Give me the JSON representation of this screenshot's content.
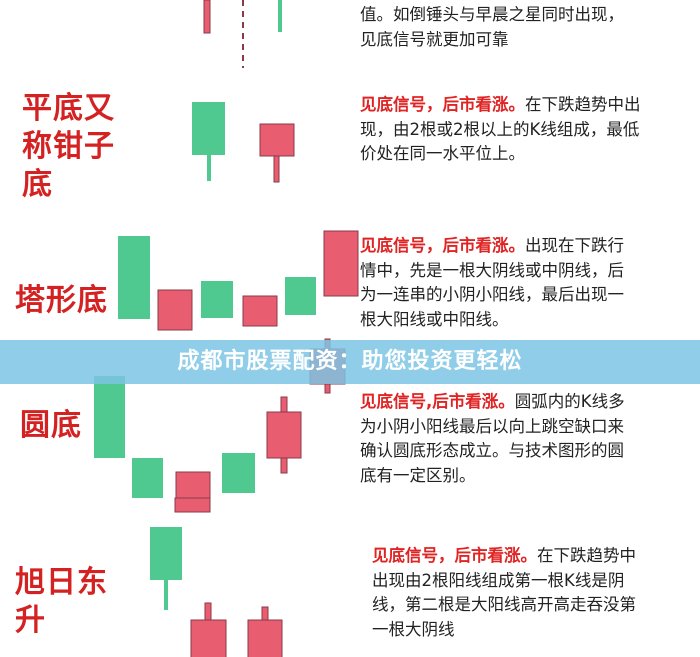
{
  "colors": {
    "bullish_red": "#e85d6f",
    "bearish_green": "#4fc98f",
    "label_red": "#d42222",
    "banner": "#7dc4e4"
  },
  "sections": [
    {
      "label": "",
      "desc_hl": "",
      "desc": "值。如倒锤头与早晨之星同时出现，见底信号就更加可靠"
    },
    {
      "label": "平底又称钳子底",
      "desc_hl": "见底信号，后市看涨。",
      "desc": "在下跌趋势中出现，由2根或2根以上的K线组成，最低价处在同一水平位上。"
    },
    {
      "label": "塔形底",
      "desc_hl": "见底信号，后市看涨。",
      "desc": "出现在下跌行情中，先是一根大阴线或中阴线，后为一连串的小阴小阳线，最后出现一根大阳线或中阳线。"
    },
    {
      "label": "圆底",
      "desc_hl": "见底信号,后市看涨。",
      "desc": "圆弧内的K线多为小阴小阳线最后以向上跳空缺口来确认圆底形态成立。与技术图形的圆底有一定区别。"
    },
    {
      "label": "旭日东升",
      "desc_hl": "见底信号，后市看涨。",
      "desc": "在下跌趋势中出现由2根阳线组成第一根K线是阴线，第二根是大阳线高开高走吞没第一根大阴线"
    }
  ],
  "banner": {
    "text": "成都市股票配资：助您投资更轻松"
  }
}
